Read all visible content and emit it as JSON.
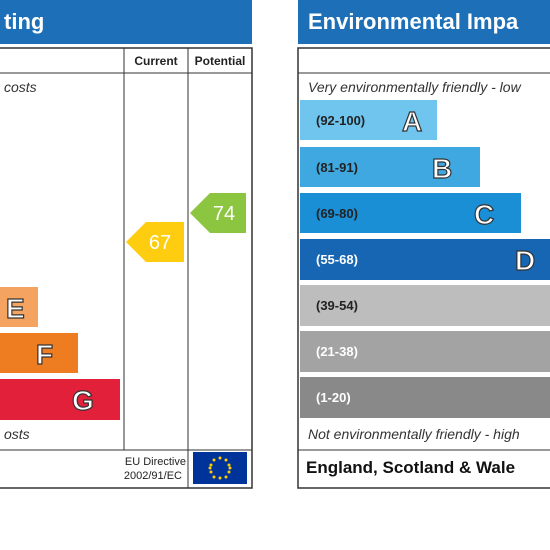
{
  "energy_panel": {
    "title": "ting",
    "columns": [
      "Current",
      "Potential"
    ],
    "top_note": "costs",
    "bottom_note": "osts",
    "bands": [
      {
        "letter": "E"
      },
      {
        "letter": "F"
      },
      {
        "letter": "G"
      }
    ],
    "current": "67",
    "potential": "74",
    "directive": [
      "EU Directive",
      "2002/91/EC"
    ]
  },
  "environment_panel": {
    "title": "Environmental Impa",
    "top_note": "Very environmentally friendly - low",
    "bottom_note": "Not environmentally friendly - high",
    "bands": [
      {
        "range": "(92-100)",
        "letter": "A"
      },
      {
        "range": "(81-91)",
        "letter": "B"
      },
      {
        "range": "(69-80)",
        "letter": "C"
      },
      {
        "range": "(55-68)",
        "letter": "D"
      },
      {
        "range": "(39-54)"
      },
      {
        "range": "(21-38)"
      },
      {
        "range": "(1-20)"
      }
    ],
    "footer": "England, Scotland & Wale"
  }
}
